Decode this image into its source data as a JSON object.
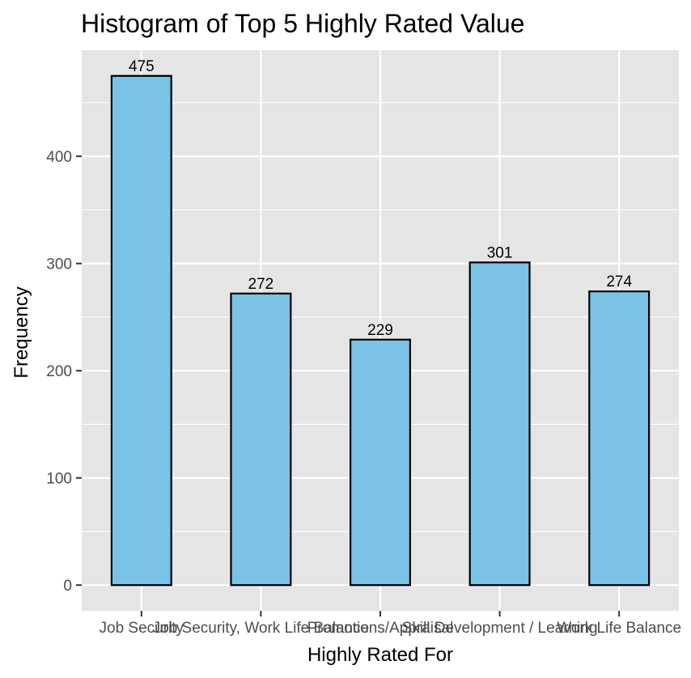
{
  "chart_data": {
    "type": "bar",
    "title": "Histogram of Top 5 Highly Rated Value",
    "xlabel": "Highly Rated For",
    "ylabel": "Frequency",
    "categories": [
      "Job Security",
      "Job Security, Work Life Balance",
      "Promotions/Appraisal",
      "Skill Development / Learning",
      "Work Life Balance"
    ],
    "values": [
      475,
      272,
      229,
      301,
      274
    ],
    "ylim": [
      -24,
      499
    ],
    "yticks": [
      0,
      100,
      200,
      300,
      400
    ],
    "y_tick_labels": [
      "0",
      "100",
      "200",
      "300",
      "400"
    ],
    "grid": true,
    "colors": {
      "panel_background": "#e5e5e5",
      "bar_fill": "#7ac3e6",
      "bar_outline": "#000000",
      "grid": "#ffffff"
    }
  }
}
